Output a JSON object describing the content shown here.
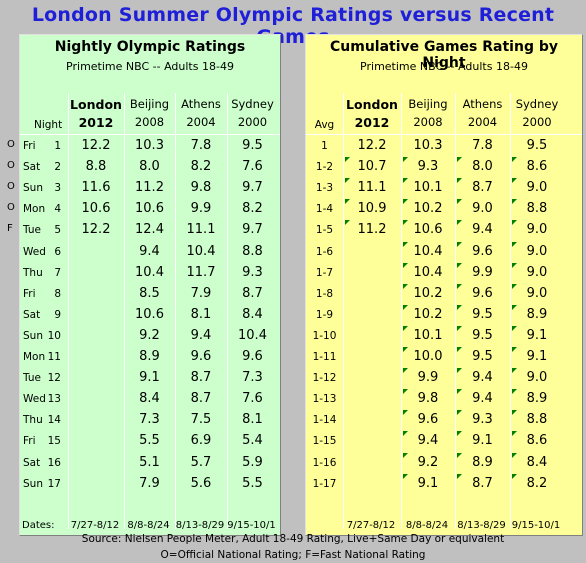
{
  "title": "London Summer Olympic Ratings versus Recent Games",
  "left": {
    "title": "Nightly Olympic Ratings",
    "subtitle": "Primetime NBC -- Adults 18-49",
    "row_header": "Night",
    "columns": [
      {
        "city": "London",
        "year": "2012"
      },
      {
        "city": "Beijing",
        "year": "2008"
      },
      {
        "city": "Athens",
        "year": "2004"
      },
      {
        "city": "Sydney",
        "year": "2000"
      }
    ],
    "rows": [
      {
        "flag": "O",
        "day": "Fri",
        "num": "1",
        "values": [
          "12.2",
          "10.3",
          "7.8",
          "9.5"
        ]
      },
      {
        "flag": "O",
        "day": "Sat",
        "num": "2",
        "values": [
          "8.8",
          "8.0",
          "8.2",
          "7.6"
        ]
      },
      {
        "flag": "O",
        "day": "Sun",
        "num": "3",
        "values": [
          "11.6",
          "11.2",
          "9.8",
          "9.7"
        ]
      },
      {
        "flag": "O",
        "day": "Mon",
        "num": "4",
        "values": [
          "10.6",
          "10.6",
          "9.9",
          "8.2"
        ]
      },
      {
        "flag": "F",
        "day": "Tue",
        "num": "5",
        "values": [
          "12.2",
          "12.4",
          "11.1",
          "9.7"
        ]
      },
      {
        "flag": "",
        "day": "Wed",
        "num": "6",
        "values": [
          "",
          "9.4",
          "10.4",
          "8.8"
        ]
      },
      {
        "flag": "",
        "day": "Thu",
        "num": "7",
        "values": [
          "",
          "10.4",
          "11.7",
          "9.3"
        ]
      },
      {
        "flag": "",
        "day": "Fri",
        "num": "8",
        "values": [
          "",
          "8.5",
          "7.9",
          "8.7"
        ]
      },
      {
        "flag": "",
        "day": "Sat",
        "num": "9",
        "values": [
          "",
          "10.6",
          "8.1",
          "8.4"
        ]
      },
      {
        "flag": "",
        "day": "Sun",
        "num": "10",
        "values": [
          "",
          "9.2",
          "9.4",
          "10.4"
        ]
      },
      {
        "flag": "",
        "day": "Mon",
        "num": "11",
        "values": [
          "",
          "8.9",
          "9.6",
          "9.6"
        ]
      },
      {
        "flag": "",
        "day": "Tue",
        "num": "12",
        "values": [
          "",
          "9.1",
          "8.7",
          "7.3"
        ]
      },
      {
        "flag": "",
        "day": "Wed",
        "num": "13",
        "values": [
          "",
          "8.4",
          "8.7",
          "7.6"
        ]
      },
      {
        "flag": "",
        "day": "Thu",
        "num": "14",
        "values": [
          "",
          "7.3",
          "7.5",
          "8.1"
        ]
      },
      {
        "flag": "",
        "day": "Fri",
        "num": "15",
        "values": [
          "",
          "5.5",
          "6.9",
          "5.4"
        ]
      },
      {
        "flag": "",
        "day": "Sat",
        "num": "16",
        "values": [
          "",
          "5.1",
          "5.7",
          "5.9"
        ]
      },
      {
        "flag": "",
        "day": "Sun",
        "num": "17",
        "values": [
          "",
          "7.9",
          "5.6",
          "5.5"
        ]
      }
    ],
    "dates_label": "Dates:",
    "dates": [
      "7/27-8/12",
      "8/8-8/24",
      "8/13-8/29",
      "9/15-10/1"
    ]
  },
  "right": {
    "title": "Cumulative Games Rating by Night",
    "subtitle": "Primetime NBC -- Adults 18-49",
    "row_header": "Avg",
    "columns": [
      {
        "city": "London",
        "year": "2012"
      },
      {
        "city": "Beijing",
        "year": "2008"
      },
      {
        "city": "Athens",
        "year": "2004"
      },
      {
        "city": "Sydney",
        "year": "2000"
      }
    ],
    "rows": [
      {
        "label": "1",
        "values": [
          "12.2",
          "10.3",
          "7.8",
          "9.5"
        ]
      },
      {
        "label": "1-2",
        "values": [
          "10.7",
          "9.3",
          "8.0",
          "8.6"
        ]
      },
      {
        "label": "1-3",
        "values": [
          "11.1",
          "10.1",
          "8.7",
          "9.0"
        ]
      },
      {
        "label": "1-4",
        "values": [
          "10.9",
          "10.2",
          "9.0",
          "8.8"
        ]
      },
      {
        "label": "1-5",
        "values": [
          "11.2",
          "10.6",
          "9.4",
          "9.0"
        ]
      },
      {
        "label": "1-6",
        "values": [
          "",
          "10.4",
          "9.6",
          "9.0"
        ]
      },
      {
        "label": "1-7",
        "values": [
          "",
          "10.4",
          "9.9",
          "9.0"
        ]
      },
      {
        "label": "1-8",
        "values": [
          "",
          "10.2",
          "9.6",
          "9.0"
        ]
      },
      {
        "label": "1-9",
        "values": [
          "",
          "10.2",
          "9.5",
          "8.9"
        ]
      },
      {
        "label": "1-10",
        "values": [
          "",
          "10.1",
          "9.5",
          "9.1"
        ]
      },
      {
        "label": "1-11",
        "values": [
          "",
          "10.0",
          "9.5",
          "9.1"
        ]
      },
      {
        "label": "1-12",
        "values": [
          "",
          "9.9",
          "9.4",
          "9.0"
        ]
      },
      {
        "label": "1-13",
        "values": [
          "",
          "9.8",
          "9.4",
          "8.9"
        ]
      },
      {
        "label": "1-14",
        "values": [
          "",
          "9.6",
          "9.3",
          "8.8"
        ]
      },
      {
        "label": "1-15",
        "values": [
          "",
          "9.4",
          "9.1",
          "8.6"
        ]
      },
      {
        "label": "1-16",
        "values": [
          "",
          "9.2",
          "8.9",
          "8.4"
        ]
      },
      {
        "label": "1-17",
        "values": [
          "",
          "9.1",
          "8.7",
          "8.2"
        ]
      }
    ],
    "dates": [
      "7/27-8/12",
      "8/8-8/24",
      "8/13-8/29",
      "9/15-10/1"
    ]
  },
  "footnote_source": "Source: Nielsen People Meter, Adult 18-49 Rating, Live+Same Day or equivalent",
  "footnote_legend": "O=Official National Rating; F=Fast National Rating",
  "colors": {
    "title": "#1f1fd8",
    "left_bg": "#ccffcc",
    "right_bg": "#ffff99",
    "marker": "#008000",
    "page_bg": "#c0c0c0"
  }
}
